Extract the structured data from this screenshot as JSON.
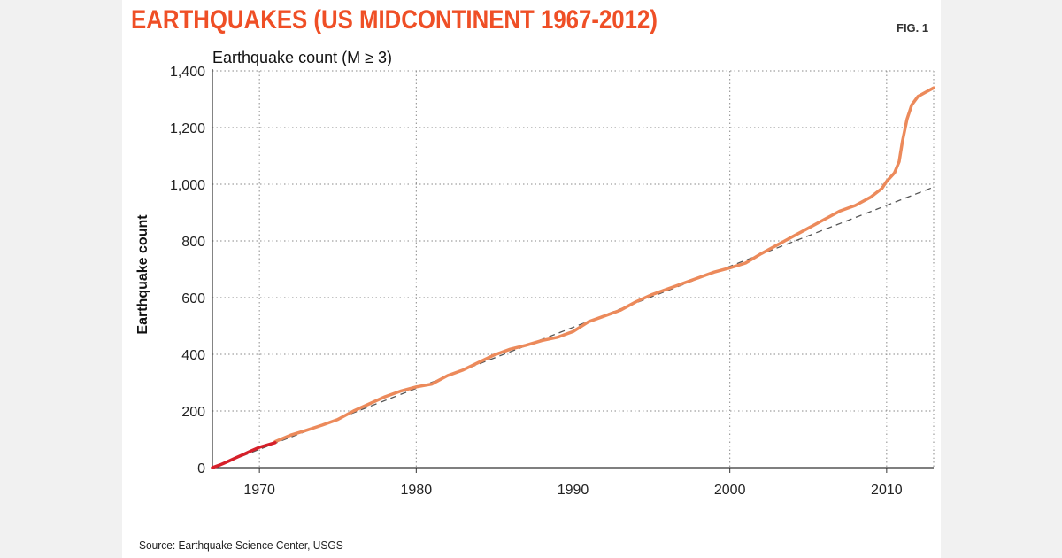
{
  "header": {
    "title": "EARTHQUAKES (US MIDCONTINENT 1967-2012)",
    "fig_label": "FIG. 1"
  },
  "footer": {
    "source": "Source: Earthquake Science Center, USGS"
  },
  "colors": {
    "title": "#ef4f26",
    "series_main": "#ec8a5b",
    "series_early": "#d6202a",
    "trend": "#555555",
    "grid": "#8a8a8a"
  },
  "chart_data": {
    "type": "line",
    "title": "Earthquake count (M ≥ 3)",
    "xlabel": "",
    "ylabel": "Earthquake count",
    "xlim": [
      1967,
      2013
    ],
    "ylim": [
      0,
      1400
    ],
    "xticks": [
      1970,
      1980,
      1990,
      2000,
      2010
    ],
    "yticks": [
      0,
      200,
      400,
      600,
      800,
      1000,
      1200,
      1400
    ],
    "ytick_labels": [
      "0",
      "200",
      "400",
      "600",
      "800",
      "1,000",
      "1,200",
      "1,400"
    ],
    "grid": true,
    "series": [
      {
        "style": "cumulative count, early segment (red)",
        "color": "#d6202a",
        "x": [
          1967.0,
          1967.5,
          1968.0,
          1968.5,
          1969.0,
          1969.5,
          1970.0,
          1970.5,
          1971.0
        ],
        "y": [
          0,
          10,
          22,
          35,
          47,
          60,
          72,
          80,
          88
        ]
      },
      {
        "style": "cumulative count (orange)",
        "color": "#ec8a5b",
        "x": [
          1971.0,
          1972.0,
          1973.0,
          1974.0,
          1975.0,
          1976.0,
          1977.0,
          1978.0,
          1979.0,
          1980.0,
          1981.0,
          1982.0,
          1983.0,
          1984.0,
          1985.0,
          1986.0,
          1987.0,
          1988.0,
          1989.0,
          1990.0,
          1991.0,
          1992.0,
          1993.0,
          1994.0,
          1995.0,
          1996.0,
          1997.0,
          1998.0,
          1999.0,
          2000.0,
          2001.0,
          2002.0,
          2003.0,
          2004.0,
          2005.0,
          2006.0,
          2007.0,
          2008.0,
          2009.0,
          2009.7,
          2010.0,
          2010.5,
          2010.8,
          2011.0,
          2011.3,
          2011.6,
          2012.0,
          2012.5,
          2013.0
        ],
        "y": [
          92,
          115,
          132,
          150,
          170,
          200,
          225,
          250,
          270,
          285,
          295,
          325,
          345,
          372,
          398,
          418,
          432,
          448,
          460,
          480,
          515,
          535,
          555,
          585,
          610,
          630,
          650,
          670,
          690,
          705,
          722,
          755,
          785,
          815,
          845,
          875,
          905,
          925,
          955,
          985,
          1010,
          1040,
          1080,
          1150,
          1230,
          1280,
          1310,
          1325,
          1340
        ]
      }
    ],
    "trend_line": {
      "style": "dashed",
      "color": "#555555",
      "x": [
        1967,
        2013
      ],
      "y": [
        0,
        990
      ]
    }
  }
}
